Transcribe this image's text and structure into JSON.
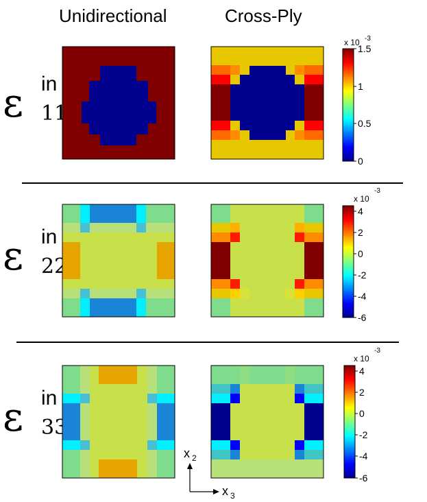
{
  "column_titles": [
    "Unidirectional",
    "Cross-Ply"
  ],
  "rows": [
    {
      "symbol": "ε",
      "superscript": "in",
      "subscript": "11",
      "colorbar": {
        "scale_label": "x 10",
        "scale_exp": "-3",
        "ticks": [
          "1.5",
          "1",
          "0.5",
          "0"
        ],
        "range": [
          0,
          1.5
        ]
      }
    },
    {
      "symbol": "ε",
      "superscript": "in",
      "subscript": "22",
      "colorbar": {
        "scale_label": "x 10",
        "scale_exp": "-3",
        "ticks": [
          "4",
          "2",
          "0",
          "-2",
          "-4",
          "-6"
        ],
        "range": [
          -6,
          4.5
        ]
      }
    },
    {
      "symbol": "ε",
      "superscript": "in",
      "subscript": "33",
      "colorbar": {
        "scale_label": "x 10",
        "scale_exp": "-3",
        "ticks": [
          "4",
          "2",
          "0",
          "-2",
          "-4",
          "-6"
        ],
        "range": [
          -6,
          4.5
        ]
      }
    }
  ],
  "axes": {
    "vertical": "x",
    "vertical_sub": "2",
    "horizontal": "x",
    "horizontal_sub": "3"
  },
  "colormap": "jet",
  "colors": {
    "dark_red": "#800000",
    "dark_blue": "#00008f",
    "divider": "#000000"
  }
}
